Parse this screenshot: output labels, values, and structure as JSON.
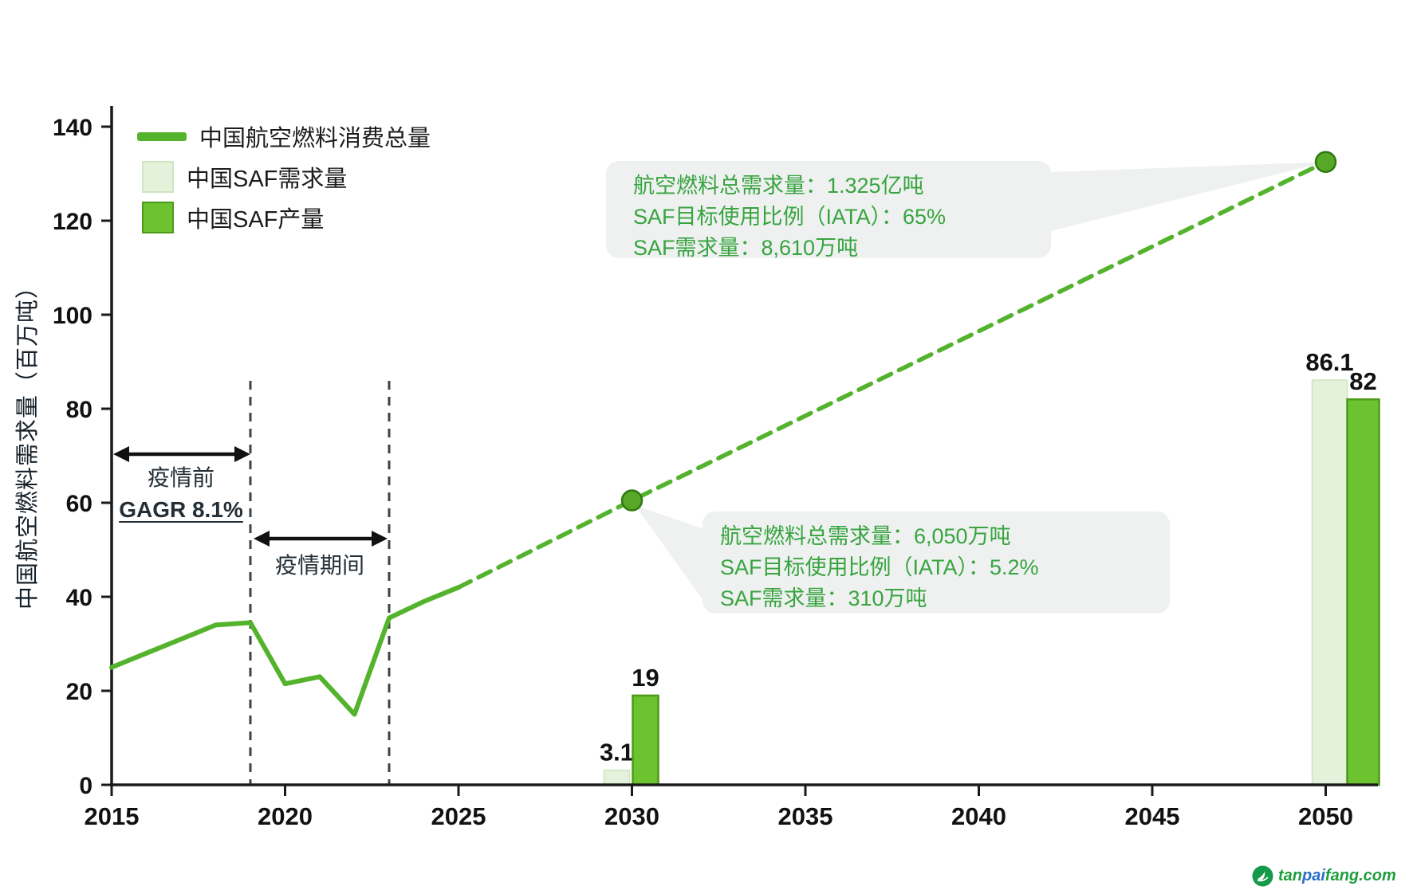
{
  "chart_data": {
    "type": "line",
    "title": "",
    "xlabel": "",
    "ylabel": "中国航空燃料需求量（百万吨）",
    "ylim": [
      0,
      140
    ],
    "xlim": [
      2015,
      2052
    ],
    "grid": false,
    "y_ticks": [
      0,
      20,
      40,
      60,
      80,
      100,
      120,
      140
    ],
    "x_ticks": [
      2015,
      2020,
      2025,
      2030,
      2035,
      2040,
      2045,
      2050
    ],
    "legend": {
      "position": "top-left",
      "items": [
        {
          "label": "中国航空燃料消费总量",
          "swatch": "line",
          "color": "#54b32c"
        },
        {
          "label": "中国SAF需求量",
          "swatch": "square",
          "color": "#e4f1db",
          "border": "#cfe6c0"
        },
        {
          "label": "中国SAF产量",
          "swatch": "square",
          "color": "#6cc32f",
          "border": "#4d9a1b"
        }
      ]
    },
    "line_series": {
      "name": "中国航空燃料消费总量",
      "color": "#54b32c",
      "solid": {
        "x": [
          2015,
          2016,
          2017,
          2018,
          2019,
          2020,
          2021,
          2022,
          2023,
          2024,
          2025
        ],
        "y": [
          25,
          28,
          31,
          34,
          34.5,
          21.5,
          23,
          15,
          35.5,
          39,
          42
        ]
      },
      "dashed": {
        "x": [
          2025,
          2030,
          2050
        ],
        "y": [
          42,
          60.5,
          132.5
        ]
      },
      "markers": [
        {
          "x": 2030,
          "y": 60.5
        },
        {
          "x": 2050,
          "y": 132.5
        }
      ],
      "marker_fill": "#57a827",
      "marker_stroke": "#2f7a12"
    },
    "bar_series": [
      {
        "name": "中国SAF需求量",
        "fill": "#e4f1db",
        "stroke": "#cde4bc",
        "points": [
          {
            "x": 2030,
            "value": 3.1,
            "label": "3.1"
          },
          {
            "x": 2050,
            "value": 86.1,
            "label": "86.1"
          }
        ]
      },
      {
        "name": "中国SAF产量",
        "fill": "#6cc32f",
        "stroke": "#4d9a1b",
        "points": [
          {
            "x": 2030,
            "value": 19,
            "label": "19"
          },
          {
            "x": 2050,
            "value": 82,
            "label": "82"
          }
        ]
      }
    ],
    "period_annotations": [
      {
        "line1": "疫情前",
        "line2": "GAGR 8.1%",
        "from": 2015,
        "to": 2019
      },
      {
        "line1": "疫情期间",
        "line2": "",
        "from": 2019,
        "to": 2023
      }
    ],
    "callouts": [
      {
        "target_x": 2050,
        "target_y": 132.5,
        "lines": [
          "航空燃料总需求量：1.325亿吨",
          "SAF目标使用比例（IATA）：65%",
          "SAF需求量：8,610万吨"
        ]
      },
      {
        "target_x": 2030,
        "target_y": 60.5,
        "lines": [
          "航空燃料总需求量：6,050万吨",
          "SAF目标使用比例（IATA）：5.2%",
          "SAF需求量：310万吨"
        ]
      }
    ],
    "colors": {
      "axis": "#1a1a1a",
      "divider": "#39444b",
      "callout_bg": "#eef1f0",
      "callout_text": "#38a43f",
      "bar_label": "#111111",
      "tick_label": "#111111"
    }
  },
  "watermark": {
    "icon": "leaf-circle-icon",
    "icon_color": "#17994b",
    "parts": [
      {
        "text": "tan",
        "color": "#1f9e3c"
      },
      {
        "text": "pai",
        "color": "#2a6fc9"
      },
      {
        "text": "fang.com",
        "color": "#1f9e3c"
      }
    ]
  }
}
